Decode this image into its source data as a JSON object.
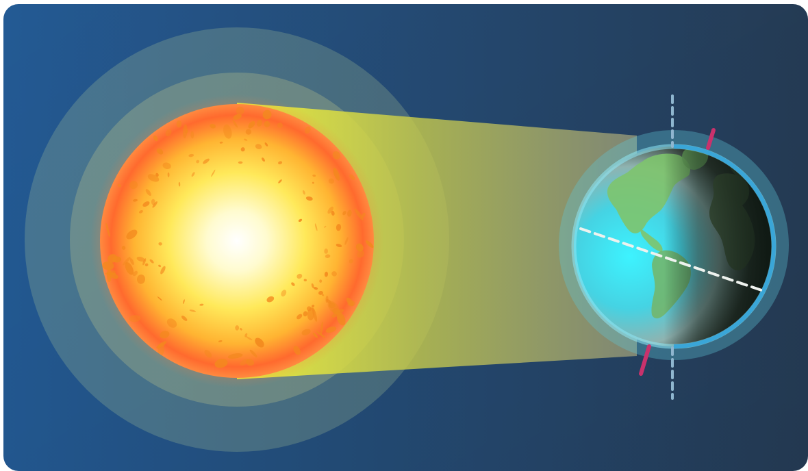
{
  "diagram": {
    "subject": "sun-earth-illumination",
    "colors": {
      "background_left": "#235a94",
      "background_right": "#263d57",
      "sun_core": "#ffffff",
      "sun_mid": "#ffe04a",
      "sun_edge": "#ff5a2c",
      "sun_spots": "#f3891e",
      "halo": "#c7e0a6",
      "light_beam_start": "#e8ee3a",
      "light_beam_end": "#a8a278",
      "earth_ocean": "#3fe5f5",
      "earth_land": "#7ec46d",
      "earth_night": "#1e2b1e",
      "atmosphere": "#5fc5d8",
      "rim": "#3aa6d8",
      "tilted_axis": "#c8326c",
      "vertical_axis": "#8fb6cf",
      "equator": "#eef2ee"
    },
    "earth": {
      "axial_tilt_degrees": 23.5
    }
  }
}
